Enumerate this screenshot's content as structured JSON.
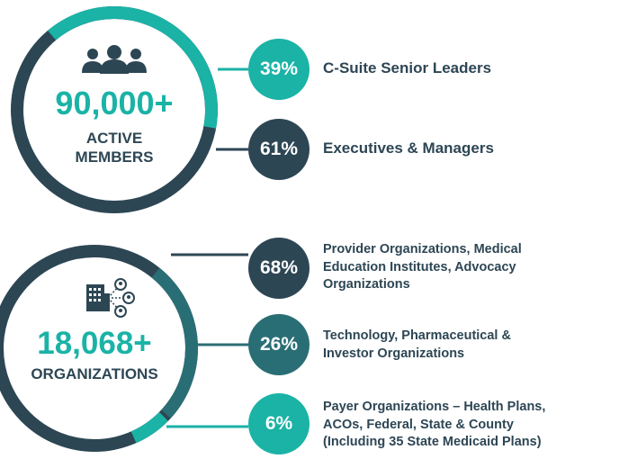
{
  "members": {
    "count": "90,000+",
    "label_line1": "ACTIVE",
    "label_line2": "MEMBERS",
    "icon": "people-group-icon",
    "breakdown": [
      {
        "percent": "39%",
        "value": 39,
        "label": "C-Suite Senior Leaders",
        "color": "#1ab3a6"
      },
      {
        "percent": "61%",
        "value": 61,
        "label": "Executives & Managers",
        "color": "#2d4654"
      }
    ]
  },
  "organizations": {
    "count": "18,068+",
    "label": "ORGANIZATIONS",
    "icon": "building-network-icon",
    "breakdown": [
      {
        "percent": "68%",
        "value": 68,
        "lines": [
          "Provider Organizations, Medical",
          "Education Institutes, Advocacy",
          "Organizations"
        ],
        "color": "#2d4654"
      },
      {
        "percent": "26%",
        "value": 26,
        "lines": [
          "Technology, Pharmaceutical &",
          "Investor Organizations"
        ],
        "color": "#2a6e75"
      },
      {
        "percent": "6%",
        "value": 6,
        "lines": [
          "Payer Organizations – Health Plans,",
          "ACOs, Federal,  State & County",
          "(Including 35 State Medicaid Plans)"
        ],
        "color": "#1ab3a6"
      }
    ]
  },
  "colors": {
    "teal": "#1ab3a6",
    "navy": "#2d4654",
    "midteal": "#2a6e75",
    "numberTeal": "#1ab3a6"
  }
}
